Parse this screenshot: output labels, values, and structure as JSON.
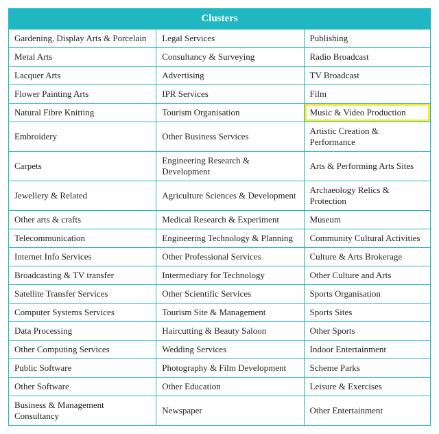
{
  "table": {
    "header": "Clusters",
    "header_bg": "#1fb7c2",
    "header_fg": "#ffffff",
    "border_color": "#1fb7c2",
    "highlight_color": "#f7e83a",
    "font_family": "Georgia, Times New Roman, serif",
    "cell_fontsize": 13,
    "header_fontsize": 15,
    "highlight_cell": {
      "row": 4,
      "col": 2
    },
    "columns": 3,
    "rows": [
      [
        "Gardening, Display Arts & Porcelain",
        "Legal Services",
        "Publishing"
      ],
      [
        "Metal Arts",
        "Consultancy & Surveying",
        "Radio Broadcast"
      ],
      [
        "Lacquer Arts",
        "Advertising",
        "TV Broadcast"
      ],
      [
        "Flower Painting Arts",
        "IPR Services",
        "Film"
      ],
      [
        "Natural Fibre Knitting",
        "Tourism Organisation",
        "Music & Video Production"
      ],
      [
        "Embroidery",
        "Other Business Services",
        "Artistic Creation & Performance"
      ],
      [
        "Carpets",
        "Engineering Research & Development",
        "Arts & Performing Arts Sites"
      ],
      [
        "Jewellery & Related",
        "Agriculture Sciences & Development",
        "Archaeology Relics & Protection"
      ],
      [
        "Other arts & crafts",
        "Medical Research & Experiment",
        "Museum"
      ],
      [
        "Telecommunication",
        "Engineering Technology & Planning",
        "Community Cultural Activities"
      ],
      [
        "Internet Info Services",
        "Other Professional Services",
        "Culture & Arts Brokerage"
      ],
      [
        "Broadcasting & TV transfer",
        "Intermediary for Technology",
        "Other Culture and Arts"
      ],
      [
        "Satellite Transfer Services",
        "Other Scientific Services",
        "Sports Organisation"
      ],
      [
        "Computer Systems Services",
        "Tourism Site & Management",
        "Sports Sites"
      ],
      [
        "Data Processing",
        "Haircutting & Beauty Saloon",
        "Other Sports"
      ],
      [
        "Other Computing Services",
        "Wedding Services",
        "Indoor Entertainment"
      ],
      [
        "Public Software",
        "Photography & Film Development",
        "Scheme Parks"
      ],
      [
        "Other Software",
        "Other Education",
        "Leisure & Exercises"
      ],
      [
        "Business & Management Consultancy",
        "Newspaper",
        "Other Entertainment"
      ]
    ]
  }
}
